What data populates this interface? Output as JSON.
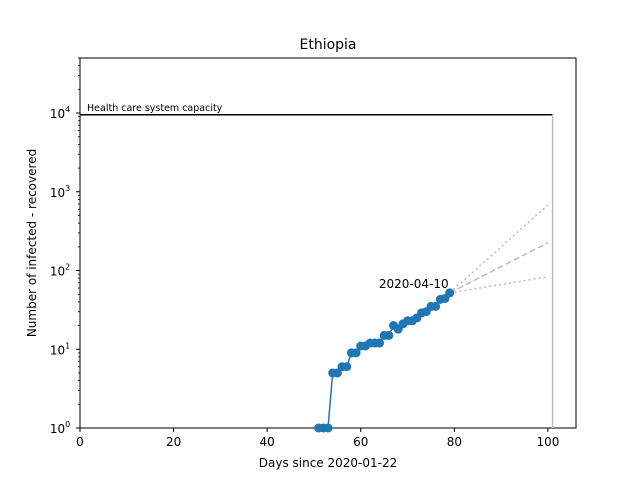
{
  "chart_data": {
    "type": "line",
    "title": "Ethiopia",
    "xlabel": "Days since 2020-01-22",
    "ylabel": "Number of infected - recovered",
    "xlim": [
      0,
      106
    ],
    "ylim": [
      1,
      50000
    ],
    "yscale": "log",
    "grid": false,
    "x_ticks": [
      0,
      20,
      40,
      60,
      80,
      100
    ],
    "y_ticks": [
      {
        "value": 1,
        "base": "10",
        "exp": "0"
      },
      {
        "value": 10,
        "base": "10",
        "exp": "1"
      },
      {
        "value": 100,
        "base": "10",
        "exp": "2"
      },
      {
        "value": 1000,
        "base": "10",
        "exp": "3"
      },
      {
        "value": 10000,
        "base": "10",
        "exp": "4"
      }
    ],
    "capacity": {
      "label": "Health care system capacity",
      "value": 9500,
      "x_end": 101,
      "color": "#000000"
    },
    "annotation": {
      "text": "2020-04-10",
      "x": 79,
      "y": 52
    },
    "series": [
      {
        "color": "#1f77b4",
        "x": [
          51,
          52,
          53,
          54,
          55,
          56,
          57,
          58,
          59,
          60,
          61,
          62,
          63,
          64,
          65,
          66,
          67,
          68,
          69,
          70,
          71,
          72,
          73,
          74,
          75,
          76,
          77,
          78,
          79
        ],
        "y": [
          1,
          1,
          1,
          5,
          5,
          6,
          6,
          9,
          9,
          11,
          11,
          12,
          12,
          12,
          15,
          15,
          20,
          18,
          21,
          23,
          23,
          25,
          29,
          30,
          35,
          35,
          43,
          44,
          52
        ]
      }
    ],
    "projections": [
      {
        "style": "dotted",
        "color": "#bbbbbb",
        "x": [
          79,
          100
        ],
        "y": [
          52,
          680
        ]
      },
      {
        "style": "dashed",
        "color": "#bbbbbb",
        "x": [
          79,
          100
        ],
        "y": [
          52,
          225
        ]
      },
      {
        "style": "dotted",
        "color": "#bbbbbb",
        "x": [
          79,
          100
        ],
        "y": [
          52,
          83
        ]
      }
    ],
    "vline": {
      "x": 101,
      "y_top": 9500,
      "color": "#bbbbbb"
    }
  }
}
